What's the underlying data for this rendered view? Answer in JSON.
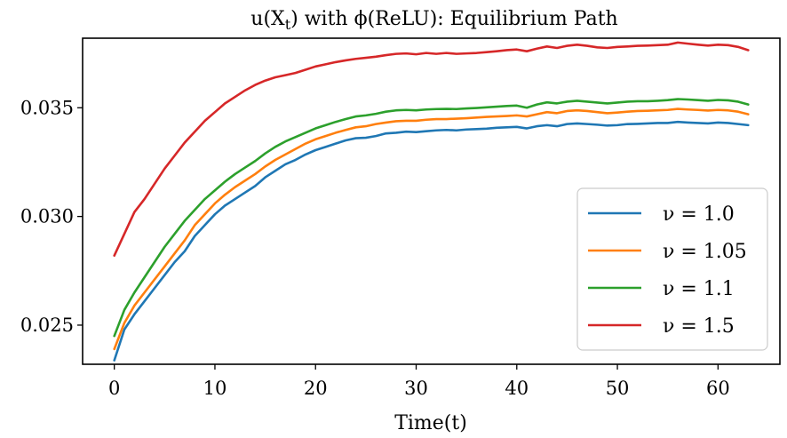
{
  "chart_data": {
    "type": "line",
    "title": "u(X_t) with ϕ(ReLU): Equilibrium Path",
    "xlabel": "Time(t)",
    "ylabel": "",
    "xlim": [
      -3.15,
      66.15
    ],
    "ylim": [
      0.0232,
      0.0382
    ],
    "xticks": [
      0,
      10,
      20,
      30,
      40,
      50,
      60
    ],
    "yticks": [
      0.025,
      0.03,
      0.035
    ],
    "xtick_labels": [
      "0",
      "10",
      "20",
      "30",
      "40",
      "50",
      "60"
    ],
    "ytick_labels": [
      "0.025",
      "0.030",
      "0.035"
    ],
    "grid": false,
    "legend_position": "lower-right",
    "x": [
      0,
      1,
      2,
      3,
      4,
      5,
      6,
      7,
      8,
      9,
      10,
      11,
      12,
      13,
      14,
      15,
      16,
      17,
      18,
      19,
      20,
      21,
      22,
      23,
      24,
      25,
      26,
      27,
      28,
      29,
      30,
      31,
      32,
      33,
      34,
      35,
      36,
      37,
      38,
      39,
      40,
      41,
      42,
      43,
      44,
      45,
      46,
      47,
      48,
      49,
      50,
      51,
      52,
      53,
      54,
      55,
      56,
      57,
      58,
      59,
      60,
      61,
      62,
      63
    ],
    "series": [
      {
        "name": "ν = 1.0",
        "color": "#1f77b4",
        "values": [
          0.02338,
          0.0248,
          0.0255,
          0.0261,
          0.0267,
          0.0273,
          0.0279,
          0.0284,
          0.0291,
          0.0296,
          0.0301,
          0.0305,
          0.0308,
          0.0311,
          0.0314,
          0.0318,
          0.0321,
          0.0324,
          0.0326,
          0.03285,
          0.03305,
          0.0332,
          0.03335,
          0.0335,
          0.0336,
          0.03362,
          0.0337,
          0.03382,
          0.03385,
          0.0339,
          0.03388,
          0.03392,
          0.03396,
          0.03398,
          0.03396,
          0.034,
          0.03402,
          0.03404,
          0.03408,
          0.0341,
          0.03412,
          0.03405,
          0.03415,
          0.0342,
          0.03415,
          0.03425,
          0.03428,
          0.03425,
          0.03422,
          0.03418,
          0.0342,
          0.03425,
          0.03426,
          0.03428,
          0.0343,
          0.0343,
          0.03435,
          0.03432,
          0.0343,
          0.03428,
          0.03432,
          0.0343,
          0.03425,
          0.0342
        ]
      },
      {
        "name": "ν = 1.05",
        "color": "#ff7f0e",
        "values": [
          0.0239,
          0.0251,
          0.0259,
          0.0265,
          0.0271,
          0.0277,
          0.0283,
          0.0289,
          0.0296,
          0.0301,
          0.0306,
          0.031,
          0.03135,
          0.03165,
          0.03195,
          0.0323,
          0.0326,
          0.03285,
          0.0331,
          0.03335,
          0.03355,
          0.0337,
          0.03385,
          0.03398,
          0.0341,
          0.03415,
          0.03425,
          0.03432,
          0.03438,
          0.0344,
          0.0344,
          0.03445,
          0.03448,
          0.03448,
          0.0345,
          0.03452,
          0.03455,
          0.03458,
          0.0346,
          0.03462,
          0.03465,
          0.0346,
          0.0347,
          0.0348,
          0.03475,
          0.03485,
          0.03488,
          0.03485,
          0.0348,
          0.03475,
          0.03478,
          0.03482,
          0.03485,
          0.03486,
          0.03488,
          0.0349,
          0.03495,
          0.03492,
          0.0349,
          0.03487,
          0.0349,
          0.03488,
          0.03482,
          0.0347
        ]
      },
      {
        "name": "ν = 1.1",
        "color": "#2ca02c",
        "values": [
          0.0245,
          0.0257,
          0.0265,
          0.0272,
          0.0279,
          0.0286,
          0.0292,
          0.0298,
          0.0303,
          0.0308,
          0.0312,
          0.0316,
          0.03195,
          0.03225,
          0.03255,
          0.0329,
          0.0332,
          0.03345,
          0.03365,
          0.03385,
          0.03405,
          0.0342,
          0.03435,
          0.03448,
          0.0346,
          0.03465,
          0.03472,
          0.03482,
          0.03488,
          0.0349,
          0.03488,
          0.03492,
          0.03494,
          0.03495,
          0.03494,
          0.03497,
          0.03499,
          0.03502,
          0.03505,
          0.03508,
          0.0351,
          0.035,
          0.03515,
          0.03525,
          0.0352,
          0.03528,
          0.03532,
          0.03528,
          0.03524,
          0.0352,
          0.03524,
          0.03528,
          0.0353,
          0.0353,
          0.03532,
          0.03535,
          0.0354,
          0.03538,
          0.03535,
          0.03532,
          0.03536,
          0.03534,
          0.03528,
          0.03515
        ]
      },
      {
        "name": "ν = 1.5",
        "color": "#d62728",
        "values": [
          0.0282,
          0.0292,
          0.0302,
          0.0308,
          0.0315,
          0.0322,
          0.0328,
          0.0334,
          0.0339,
          0.0344,
          0.0348,
          0.0352,
          0.0355,
          0.0358,
          0.03605,
          0.03625,
          0.0364,
          0.0365,
          0.0366,
          0.03675,
          0.0369,
          0.037,
          0.0371,
          0.03718,
          0.03725,
          0.0373,
          0.03735,
          0.03742,
          0.03748,
          0.0375,
          0.03746,
          0.03752,
          0.03748,
          0.03752,
          0.03748,
          0.0375,
          0.03752,
          0.03756,
          0.0376,
          0.03765,
          0.03768,
          0.0376,
          0.03772,
          0.03782,
          0.03775,
          0.03785,
          0.0379,
          0.03785,
          0.03778,
          0.03775,
          0.0378,
          0.03782,
          0.03785,
          0.03786,
          0.03788,
          0.0379,
          0.038,
          0.03795,
          0.0379,
          0.03786,
          0.0379,
          0.03788,
          0.0378,
          0.03765
        ]
      }
    ]
  }
}
